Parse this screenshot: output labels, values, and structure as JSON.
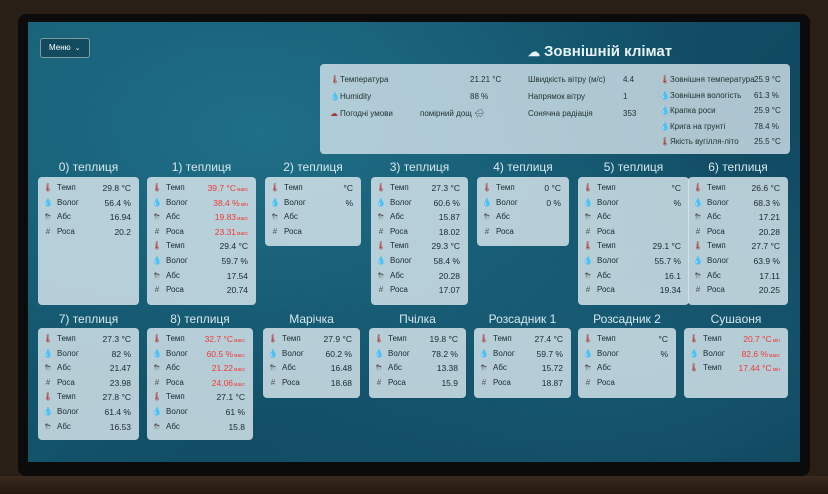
{
  "menu": {
    "label": "Меню",
    "chevron": "⌄"
  },
  "external": {
    "title": "Зовнішній клімат",
    "icon": "☁",
    "rows_left": [
      {
        "icon": "🌡",
        "label": "Температура",
        "value": "21.21 °C"
      },
      {
        "icon": "💧",
        "label": "Humidity",
        "value": "88 %"
      },
      {
        "icon": "☁",
        "label": "Погодні умови",
        "value": "помірний дощ 🌧"
      }
    ],
    "rows_mid": [
      {
        "label": "Швидкість вітру (м/с)",
        "value": "4.4"
      },
      {
        "label": "Напрямок вітру",
        "value": "1"
      },
      {
        "label": "Сонячна радіація",
        "value": "353"
      }
    ],
    "rows_right": [
      {
        "icon": "🌡",
        "label": "Зовнішня температура",
        "value": "25.9 °C"
      },
      {
        "icon": "💧",
        "label": "Зовнішня вологість",
        "value": "61.3 %"
      },
      {
        "icon": "💧",
        "label": "Крапка роси",
        "value": "25.9 °C"
      },
      {
        "icon": "💧",
        "label": "Крига на грунті",
        "value": "78.4 %"
      },
      {
        "icon": "🌡",
        "label": "Якість вугілля-літо",
        "value": "25.5 °C"
      }
    ]
  },
  "greenhouses": [
    {
      "title": "0) теплиця",
      "rows": [
        {
          "icon": "🌡",
          "label": "Темп",
          "value": "29.8 °C"
        },
        {
          "icon": "💧",
          "label": "Волог",
          "value": "56.4 %"
        },
        {
          "icon": "⛈",
          "label": "Абс",
          "value": "16.94"
        },
        {
          "icon": "#",
          "label": "Роса",
          "value": "20.2"
        }
      ]
    },
    {
      "title": "1) теплиця",
      "rows": [
        {
          "icon": "🌡",
          "label": "Темп",
          "value": "39.7 °C",
          "alert": true,
          "sfx": "макс"
        },
        {
          "icon": "💧",
          "label": "Волог",
          "value": "38.4 %",
          "alert": true,
          "sfx": "мін"
        },
        {
          "icon": "⛈",
          "label": "Абс",
          "value": "19.83",
          "alert": true,
          "sfx": "макс"
        },
        {
          "icon": "#",
          "label": "Роса",
          "value": "23.31",
          "alert": true,
          "sfx": "макс"
        },
        {
          "icon": "🌡",
          "label": "Темп",
          "value": "29.4 °C"
        },
        {
          "icon": "💧",
          "label": "Волог",
          "value": "59.7 %"
        },
        {
          "icon": "⛈",
          "label": "Абс",
          "value": "17.54"
        },
        {
          "icon": "#",
          "label": "Роса",
          "value": "20.74"
        }
      ]
    },
    {
      "title": "2) теплиця",
      "rows": [
        {
          "icon": "🌡",
          "label": "Темп",
          "value": "°C"
        },
        {
          "icon": "💧",
          "label": "Волог",
          "value": "%"
        },
        {
          "icon": "⛈",
          "label": "Абс",
          "value": ""
        },
        {
          "icon": "#",
          "label": "Роса",
          "value": ""
        }
      ]
    },
    {
      "title": "3) теплиця",
      "rows": [
        {
          "icon": "🌡",
          "label": "Темп",
          "value": "27.3 °C"
        },
        {
          "icon": "💧",
          "label": "Волог",
          "value": "60.6 %"
        },
        {
          "icon": "⛈",
          "label": "Абс",
          "value": "15.87"
        },
        {
          "icon": "#",
          "label": "Роса",
          "value": "18.02"
        },
        {
          "icon": "🌡",
          "label": "Темп",
          "value": "29.3 °C"
        },
        {
          "icon": "💧",
          "label": "Волог",
          "value": "58.4 %"
        },
        {
          "icon": "⛈",
          "label": "Абс",
          "value": "20.28"
        },
        {
          "icon": "#",
          "label": "Роса",
          "value": "17.07"
        }
      ]
    },
    {
      "title": "4) теплиця",
      "rows": [
        {
          "icon": "🌡",
          "label": "Темп",
          "value": "0 °C"
        },
        {
          "icon": "💧",
          "label": "Волог",
          "value": "0 %"
        },
        {
          "icon": "⛈",
          "label": "Абс",
          "value": ""
        },
        {
          "icon": "#",
          "label": "Роса",
          "value": ""
        }
      ]
    },
    {
      "title": "5) теплиця",
      "rows": [
        {
          "icon": "🌡",
          "label": "Темп",
          "value": "°C"
        },
        {
          "icon": "💧",
          "label": "Волог",
          "value": "%"
        },
        {
          "icon": "⛈",
          "label": "Абс",
          "value": ""
        },
        {
          "icon": "#",
          "label": "Роса",
          "value": ""
        },
        {
          "icon": "🌡",
          "label": "Темп",
          "value": "29.1 °C"
        },
        {
          "icon": "💧",
          "label": "Волог",
          "value": "55.7 %"
        },
        {
          "icon": "⛈",
          "label": "Абс",
          "value": "16.1"
        },
        {
          "icon": "#",
          "label": "Роса",
          "value": "19.34"
        }
      ]
    },
    {
      "title": "6) теплиця",
      "rows": [
        {
          "icon": "🌡",
          "label": "Темп",
          "value": "26.6 °C"
        },
        {
          "icon": "💧",
          "label": "Волог",
          "value": "68.3 %"
        },
        {
          "icon": "⛈",
          "label": "Абс",
          "value": "17.21"
        },
        {
          "icon": "#",
          "label": "Роса",
          "value": "20.28"
        },
        {
          "icon": "🌡",
          "label": "Темп",
          "value": "27.7 °C"
        },
        {
          "icon": "💧",
          "label": "Волог",
          "value": "63.9 %"
        },
        {
          "icon": "⛈",
          "label": "Абс",
          "value": "17.11"
        },
        {
          "icon": "#",
          "label": "Роса",
          "value": "20.25"
        }
      ]
    },
    {
      "title": "7) теплиця",
      "rows": [
        {
          "icon": "🌡",
          "label": "Темп",
          "value": "27.3 °C"
        },
        {
          "icon": "💧",
          "label": "Волог",
          "value": "82 %"
        },
        {
          "icon": "⛈",
          "label": "Абс",
          "value": "21.47"
        },
        {
          "icon": "#",
          "label": "Роса",
          "value": "23.98"
        },
        {
          "icon": "🌡",
          "label": "Темп",
          "value": "27.8 °C"
        },
        {
          "icon": "💧",
          "label": "Волог",
          "value": "61.4 %"
        },
        {
          "icon": "⛈",
          "label": "Абс",
          "value": "16.53"
        }
      ]
    },
    {
      "title": "8) теплиця",
      "rows": [
        {
          "icon": "🌡",
          "label": "Темп",
          "value": "32.7 °C",
          "alert": true,
          "sfx": "макс"
        },
        {
          "icon": "💧",
          "label": "Волог",
          "value": "60.5 %",
          "alert": true,
          "sfx": "макс"
        },
        {
          "icon": "⛈",
          "label": "Абс",
          "value": "21.22",
          "alert": true,
          "sfx": "макс"
        },
        {
          "icon": "#",
          "label": "Роса",
          "value": "24.06",
          "alert": true,
          "sfx": "макс"
        },
        {
          "icon": "🌡",
          "label": "Темп",
          "value": "27.1 °C"
        },
        {
          "icon": "💧",
          "label": "Волог",
          "value": "61 %"
        },
        {
          "icon": "⛈",
          "label": "Абс",
          "value": "15.8"
        }
      ]
    },
    {
      "title": "Марічка",
      "rows": [
        {
          "icon": "🌡",
          "label": "Темп",
          "value": "27.9 °C"
        },
        {
          "icon": "💧",
          "label": "Волог",
          "value": "60.2 %"
        },
        {
          "icon": "⛈",
          "label": "Абс",
          "value": "16.48"
        },
        {
          "icon": "#",
          "label": "Роса",
          "value": "18.68"
        }
      ]
    },
    {
      "title": "Пчілка",
      "rows": [
        {
          "icon": "🌡",
          "label": "Темп",
          "value": "19.8 °C"
        },
        {
          "icon": "💧",
          "label": "Волог",
          "value": "78.2 %"
        },
        {
          "icon": "⛈",
          "label": "Абс",
          "value": "13.38"
        },
        {
          "icon": "#",
          "label": "Роса",
          "value": "15.9"
        }
      ]
    },
    {
      "title": "Розсадник 1",
      "rows": [
        {
          "icon": "🌡",
          "label": "Темп",
          "value": "27.4 °C"
        },
        {
          "icon": "💧",
          "label": "Волог",
          "value": "59.7 %"
        },
        {
          "icon": "⛈",
          "label": "Абс",
          "value": "15.72"
        },
        {
          "icon": "#",
          "label": "Роса",
          "value": "18.87"
        }
      ]
    },
    {
      "title": "Розсадник 2",
      "rows": [
        {
          "icon": "🌡",
          "label": "Темп",
          "value": "°C"
        },
        {
          "icon": "💧",
          "label": "Волог",
          "value": "%"
        },
        {
          "icon": "⛈",
          "label": "Абс",
          "value": ""
        },
        {
          "icon": "#",
          "label": "Роса",
          "value": ""
        }
      ]
    },
    {
      "title": "Сушаоня",
      "rows": [
        {
          "icon": "🌡",
          "label": "Темп",
          "value": "20.7 °C",
          "alert": true,
          "sfx": "мін"
        },
        {
          "icon": "💧",
          "label": "Волог",
          "value": "82.6 %",
          "alert": true,
          "sfx": "макс"
        },
        {
          "icon": "🌡",
          "label": "Темп",
          "value": "17.44 °C",
          "alert": true,
          "sfx": "мін"
        }
      ]
    }
  ]
}
